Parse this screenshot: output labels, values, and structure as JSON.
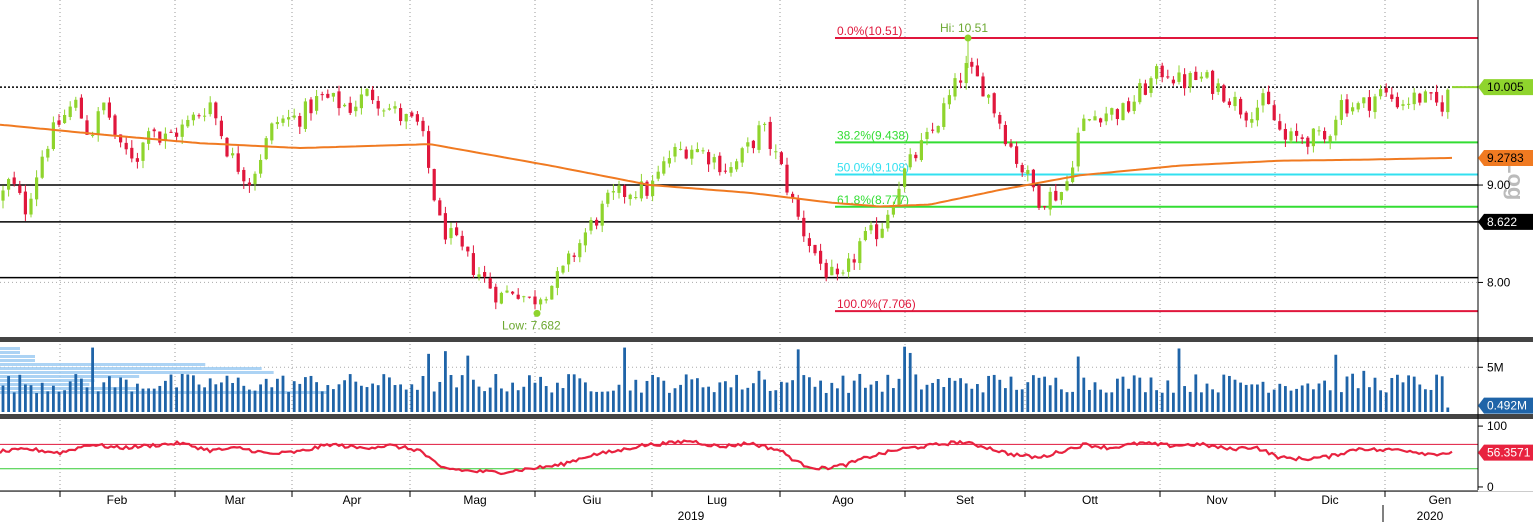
{
  "colors": {
    "up": "#8fd42d",
    "down": "#e0173c",
    "ma": "#f07a21",
    "fib_red": "#e0173c",
    "fib_green": "#33dd33",
    "fib_cyan": "#33e0f0",
    "volume": "#1f64a8",
    "volume_profile": "#9ecbf2",
    "rsi": "#e8223f",
    "price_tag": "#8fd42d",
    "ma_tag": "#f07a21",
    "support_tag": "#000000",
    "volume_tag": "#1f64a8",
    "rsi_tag": "#e8223f"
  },
  "chart_data": [
    {
      "type": "candlestick",
      "panel": "price",
      "ylim": [
        7.45,
        10.9
      ],
      "yticks": [
        "9.00",
        "8.00"
      ],
      "ytick_values": [
        9.0,
        8.0
      ],
      "x_months": [
        "Feb",
        "Mar",
        "Apr",
        "Mag",
        "Giu",
        "Lug",
        "Ago",
        "Set",
        "Ott",
        "Nov",
        "Dic",
        "Gen"
      ],
      "x_years": [
        "2019",
        "2020"
      ],
      "last_price": {
        "label": "10.005",
        "value": 10.005
      },
      "moving_average": {
        "label": "9.2783",
        "value": 9.2783
      },
      "horizontal_levels": [
        {
          "value": 10.005,
          "style": "dotted"
        },
        {
          "value": 9.0,
          "style": "solid"
        },
        {
          "value": 8.622,
          "style": "solid",
          "label": "8.622"
        },
        {
          "value": 8.05,
          "style": "solid"
        }
      ],
      "fibonacci": [
        {
          "label": "0.0%(10.51)",
          "value": 10.51,
          "color": "red"
        },
        {
          "label": "38.2%(9.438)",
          "value": 9.438,
          "color": "green"
        },
        {
          "label": "50.0%(9.108)",
          "value": 9.108,
          "color": "cyan"
        },
        {
          "label": "61.8%(8.777)",
          "value": 8.777,
          "color": "green"
        },
        {
          "label": "100.0%(7.706)",
          "value": 7.706,
          "color": "red"
        }
      ],
      "annotations": [
        {
          "label": "Hi: 10.51",
          "value": 10.51,
          "date": "Set"
        },
        {
          "label": "Low: 7.682",
          "value": 7.682,
          "date": "Mag"
        }
      ],
      "watermark": "Log",
      "price_anchors": [
        [
          0,
          8.85
        ],
        [
          10,
          9.05
        ],
        [
          25,
          8.75
        ],
        [
          45,
          9.4
        ],
        [
          60,
          9.65
        ],
        [
          75,
          9.85
        ],
        [
          90,
          9.5
        ],
        [
          105,
          9.85
        ],
        [
          120,
          9.35
        ],
        [
          140,
          9.3
        ],
        [
          150,
          9.7
        ],
        [
          160,
          9.45
        ],
        [
          185,
          9.6
        ],
        [
          210,
          9.85
        ],
        [
          230,
          9.3
        ],
        [
          250,
          9.05
        ],
        [
          275,
          9.65
        ],
        [
          300,
          9.7
        ],
        [
          320,
          9.9
        ],
        [
          350,
          9.8
        ],
        [
          370,
          9.95
        ],
        [
          400,
          9.7
        ],
        [
          420,
          9.6
        ],
        [
          440,
          8.6
        ],
        [
          470,
          8.2
        ],
        [
          500,
          7.85
        ],
        [
          515,
          7.95
        ],
        [
          530,
          7.8
        ],
        [
          560,
          8.05
        ],
        [
          585,
          8.5
        ],
        [
          610,
          8.85
        ],
        [
          630,
          8.95
        ],
        [
          650,
          8.95
        ],
        [
          670,
          9.3
        ],
        [
          690,
          9.4
        ],
        [
          710,
          9.3
        ],
        [
          730,
          9.15
        ],
        [
          750,
          9.4
        ],
        [
          762,
          9.6
        ],
        [
          780,
          9.2
        ],
        [
          800,
          8.6
        ],
        [
          820,
          8.2
        ],
        [
          840,
          7.95
        ],
        [
          860,
          8.4
        ],
        [
          880,
          8.55
        ],
        [
          900,
          9.05
        ],
        [
          915,
          9.3
        ],
        [
          930,
          9.5
        ],
        [
          955,
          10.0
        ],
        [
          965,
          10.2
        ],
        [
          985,
          10.0
        ],
        [
          1000,
          9.65
        ],
        [
          1015,
          9.3
        ],
        [
          1040,
          8.85
        ],
        [
          1065,
          8.95
        ],
        [
          1080,
          9.6
        ],
        [
          1100,
          9.75
        ],
        [
          1125,
          9.75
        ],
        [
          1140,
          9.95
        ],
        [
          1165,
          10.2
        ],
        [
          1180,
          10.05
        ],
        [
          1200,
          10.1
        ],
        [
          1220,
          10.0
        ],
        [
          1245,
          9.75
        ],
        [
          1265,
          9.85
        ],
        [
          1285,
          9.45
        ],
        [
          1305,
          9.5
        ],
        [
          1325,
          9.45
        ],
        [
          1340,
          9.85
        ],
        [
          1360,
          9.8
        ],
        [
          1380,
          9.95
        ],
        [
          1400,
          9.85
        ],
        [
          1420,
          9.9
        ],
        [
          1440,
          9.8
        ],
        [
          1452,
          10.005
        ]
      ],
      "ma_anchors": [
        [
          0,
          9.62
        ],
        [
          100,
          9.52
        ],
        [
          200,
          9.43
        ],
        [
          300,
          9.38
        ],
        [
          430,
          9.42
        ],
        [
          550,
          9.2
        ],
        [
          650,
          9.0
        ],
        [
          750,
          8.92
        ],
        [
          830,
          8.82
        ],
        [
          880,
          8.78
        ],
        [
          930,
          8.8
        ],
        [
          1000,
          8.95
        ],
        [
          1080,
          9.1
        ],
        [
          1180,
          9.2
        ],
        [
          1280,
          9.25
        ],
        [
          1360,
          9.26
        ],
        [
          1450,
          9.2783
        ]
      ]
    },
    {
      "type": "bar",
      "panel": "volume",
      "ylim": [
        0,
        7.6
      ],
      "yticks": [
        "5M"
      ],
      "ytick_values": [
        5
      ],
      "last_volume": {
        "label": "0.492M",
        "value": 0.492
      },
      "base_level": 3,
      "spikes": [
        [
          90,
          7.2
        ],
        [
          430,
          6.5
        ],
        [
          443,
          6.8
        ],
        [
          468,
          6.3
        ],
        [
          623,
          7.2
        ],
        [
          757,
          4.6
        ],
        [
          797,
          7.0
        ],
        [
          905,
          7.3
        ],
        [
          912,
          6.6
        ],
        [
          1077,
          6.2
        ],
        [
          1180,
          7.1
        ],
        [
          1337,
          6.4
        ],
        [
          1365,
          4.6
        ],
        [
          1448,
          0.5
        ]
      ]
    },
    {
      "type": "line",
      "panel": "rsi",
      "ylim": [
        -5,
        110
      ],
      "yticks": [
        "100",
        "0"
      ],
      "ytick_values": [
        100,
        0
      ],
      "upper_band": 70,
      "lower_band": 30,
      "last_value": {
        "label": "56.3571",
        "value": 56.3571
      },
      "rsi_anchors": [
        [
          0,
          58
        ],
        [
          30,
          62
        ],
        [
          60,
          56
        ],
        [
          90,
          70
        ],
        [
          120,
          64
        ],
        [
          150,
          68
        ],
        [
          180,
          72
        ],
        [
          210,
          60
        ],
        [
          240,
          64
        ],
        [
          270,
          54
        ],
        [
          300,
          58
        ],
        [
          330,
          70
        ],
        [
          360,
          64
        ],
        [
          390,
          68
        ],
        [
          420,
          60
        ],
        [
          440,
          32
        ],
        [
          470,
          26
        ],
        [
          500,
          24
        ],
        [
          530,
          30
        ],
        [
          560,
          36
        ],
        [
          590,
          52
        ],
        [
          620,
          60
        ],
        [
          640,
          68
        ],
        [
          670,
          72
        ],
        [
          690,
          76
        ],
        [
          720,
          66
        ],
        [
          750,
          72
        ],
        [
          780,
          60
        ],
        [
          800,
          38
        ],
        [
          820,
          30
        ],
        [
          845,
          36
        ],
        [
          870,
          50
        ],
        [
          900,
          62
        ],
        [
          930,
          68
        ],
        [
          960,
          74
        ],
        [
          985,
          66
        ],
        [
          1010,
          54
        ],
        [
          1040,
          48
        ],
        [
          1060,
          58
        ],
        [
          1085,
          70
        ],
        [
          1110,
          64
        ],
        [
          1140,
          72
        ],
        [
          1170,
          68
        ],
        [
          1200,
          70
        ],
        [
          1230,
          62
        ],
        [
          1255,
          66
        ],
        [
          1280,
          48
        ],
        [
          1305,
          46
        ],
        [
          1330,
          50
        ],
        [
          1360,
          64
        ],
        [
          1380,
          60
        ],
        [
          1400,
          62
        ],
        [
          1430,
          54
        ],
        [
          1452,
          56.3571
        ]
      ]
    }
  ]
}
